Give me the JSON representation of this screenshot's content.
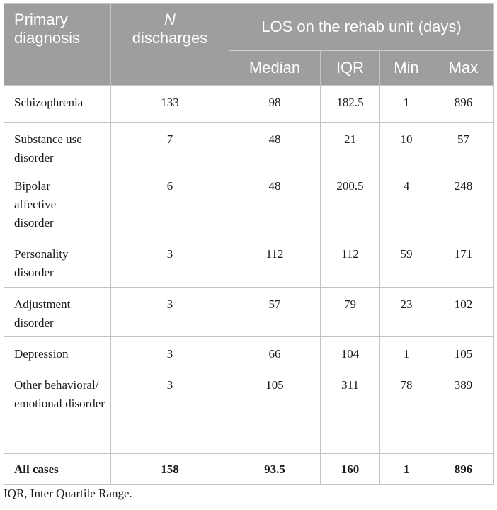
{
  "header": {
    "col_diagnosis": "Primary diagnosis",
    "col_n_italic": "N",
    "col_n_rest": "discharges",
    "group_label": "LOS on the rehab unit (days)",
    "sub_median": "Median",
    "sub_iqr": "IQR",
    "sub_min": "Min",
    "sub_max": "Max"
  },
  "rows": [
    {
      "diagnosis": "Schizophrenia",
      "n": "133",
      "median": "98",
      "iqr": "182.5",
      "min": "1",
      "max": "896"
    },
    {
      "diagnosis": "Substance use disorder",
      "n": "7",
      "median": "48",
      "iqr": "21",
      "min": "10",
      "max": "57"
    },
    {
      "diagnosis": "Bipolar affective disorder",
      "n": "6",
      "median": "48",
      "iqr": "200.5",
      "min": "4",
      "max": "248"
    },
    {
      "diagnosis": "Personality disorder",
      "n": "3",
      "median": "112",
      "iqr": "112",
      "min": "59",
      "max": "171"
    },
    {
      "diagnosis": "Adjustment disorder",
      "n": "3",
      "median": "57",
      "iqr": "79",
      "min": "23",
      "max": "102"
    },
    {
      "diagnosis": "Depression",
      "n": "3",
      "median": "66",
      "iqr": "104",
      "min": "1",
      "max": "105"
    },
    {
      "diagnosis": "Other behavioral/ emotional disorder",
      "n": "3",
      "median": "105",
      "iqr": "311",
      "min": "78",
      "max": "389"
    }
  ],
  "total": {
    "diagnosis": "All cases",
    "n": "158",
    "median": "93.5",
    "iqr": "160",
    "min": "1",
    "max": "896"
  },
  "footnote": "IQR, Inter Quartile Range."
}
